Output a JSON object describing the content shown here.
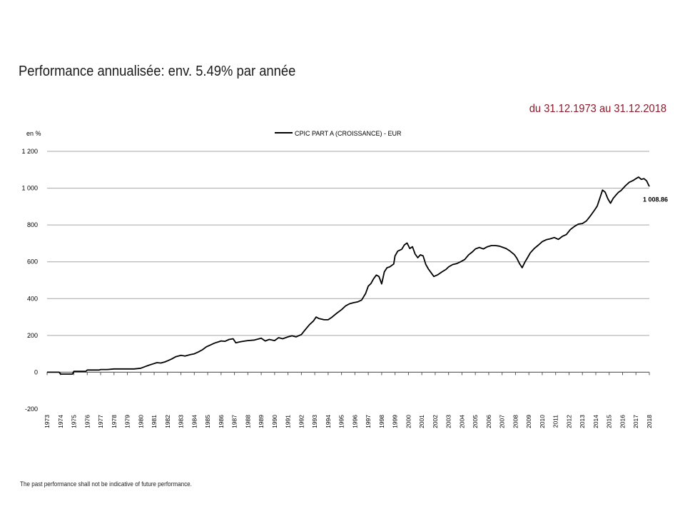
{
  "page": {
    "title": "Performance annualisée: env. 5.49% par année",
    "period": "du 31.12.1973 au 31.12.2018",
    "footnote": "The past performance shall not be indicative of future performance."
  },
  "chart_data": {
    "type": "line",
    "ylabel": "en %",
    "ylim": [
      -200,
      1200
    ],
    "yticks": [
      -200,
      0,
      200,
      400,
      600,
      800,
      1000,
      1200
    ],
    "ytick_labels": [
      "-200",
      "0",
      "200",
      "400",
      "600",
      "800",
      "1 000",
      "1 200"
    ],
    "xticks": [
      "1973",
      "1974",
      "1975",
      "1976",
      "1977",
      "1978",
      "1979",
      "1980",
      "1981",
      "1982",
      "1983",
      "1984",
      "1985",
      "1986",
      "1987",
      "1988",
      "1989",
      "1990",
      "1991",
      "1992",
      "1993",
      "1994",
      "1995",
      "1996",
      "1997",
      "1998",
      "1999",
      "2000",
      "2001",
      "2002",
      "2003",
      "2004",
      "2005",
      "2006",
      "2007",
      "2008",
      "2009",
      "2010",
      "2011",
      "2012",
      "2013",
      "2014",
      "2015",
      "2016",
      "2017",
      "2018"
    ],
    "grid": "horizontal",
    "legend_position": "top-center",
    "end_label": "1 008.86",
    "colors": {
      "line": "#000000",
      "grid": "#a6a6a6",
      "period": "#8b1a2b"
    },
    "series": [
      {
        "name": "CPIC PART A (CROISSANCE) - EUR",
        "x": [
          1973.0,
          1973.9,
          1974.0,
          1974.9,
          1975.0,
          1975.9,
          1976.0,
          1976.9,
          1977.0,
          1977.5,
          1978.0,
          1978.5,
          1979.0,
          1979.5,
          1980.0,
          1980.3,
          1980.6,
          1980.9,
          1981.2,
          1981.5,
          1981.8,
          1982.0,
          1982.3,
          1982.6,
          1983.0,
          1983.3,
          1983.7,
          1984.0,
          1984.3,
          1984.6,
          1984.9,
          1985.2,
          1985.5,
          1985.8,
          1986.0,
          1986.3,
          1986.6,
          1986.9,
          1987.1,
          1987.4,
          1987.8,
          1988.0,
          1988.5,
          1989.0,
          1989.3,
          1989.6,
          1990.0,
          1990.3,
          1990.6,
          1991.0,
          1991.3,
          1991.6,
          1992.0,
          1992.3,
          1992.6,
          1992.9,
          1993.1,
          1993.3,
          1993.7,
          1994.0,
          1994.3,
          1994.6,
          1995.0,
          1995.3,
          1995.6,
          1995.9,
          1996.2,
          1996.5,
          1996.8,
          1997.0,
          1997.2,
          1997.4,
          1997.6,
          1997.8,
          1998.0,
          1998.2,
          1998.4,
          1998.6,
          1998.9,
          1999.0,
          1999.2,
          1999.5,
          1999.7,
          1999.9,
          2000.1,
          2000.3,
          2000.5,
          2000.7,
          2000.9,
          2001.1,
          2001.3,
          2001.5,
          2001.7,
          2001.9,
          2002.2,
          2002.5,
          2002.8,
          2003.0,
          2003.3,
          2003.6,
          2003.9,
          2004.2,
          2004.5,
          2004.8,
          2005.0,
          2005.3,
          2005.6,
          2005.9,
          2006.2,
          2006.5,
          2006.8,
          2007.0,
          2007.3,
          2007.6,
          2007.9,
          2008.1,
          2008.3,
          2008.5,
          2008.7,
          2008.9,
          2009.1,
          2009.4,
          2009.7,
          2010.0,
          2010.3,
          2010.6,
          2010.9,
          2011.2,
          2011.5,
          2011.8,
          2012.1,
          2012.4,
          2012.7,
          2013.0,
          2013.3,
          2013.6,
          2013.9,
          2014.1,
          2014.3,
          2014.5,
          2014.7,
          2014.9,
          2015.1,
          2015.3,
          2015.5,
          2015.7,
          2015.9,
          2016.2,
          2016.5,
          2016.8,
          2017.0,
          2017.2,
          2017.4,
          2017.6,
          2017.8,
          2018.0
        ],
        "values": [
          0,
          0,
          -10,
          -10,
          5,
          5,
          12,
          12,
          15,
          15,
          18,
          18,
          18,
          18,
          22,
          30,
          38,
          45,
          52,
          50,
          56,
          62,
          72,
          84,
          92,
          88,
          96,
          100,
          110,
          122,
          138,
          148,
          158,
          165,
          170,
          168,
          178,
          182,
          160,
          165,
          170,
          172,
          175,
          185,
          170,
          178,
          172,
          188,
          182,
          192,
          198,
          192,
          205,
          232,
          258,
          278,
          300,
          292,
          285,
          285,
          300,
          318,
          340,
          360,
          372,
          378,
          382,
          392,
          428,
          468,
          482,
          508,
          528,
          520,
          480,
          545,
          568,
          572,
          588,
          632,
          658,
          668,
          692,
          702,
          672,
          682,
          642,
          622,
          638,
          632,
          585,
          560,
          540,
          520,
          530,
          545,
          558,
          572,
          585,
          590,
          600,
          612,
          638,
          655,
          670,
          678,
          670,
          682,
          688,
          688,
          685,
          680,
          672,
          658,
          640,
          620,
          590,
          568,
          598,
          622,
          648,
          672,
          690,
          710,
          720,
          725,
          732,
          722,
          738,
          748,
          775,
          792,
          805,
          808,
          822,
          850,
          880,
          902,
          945,
          990,
          978,
          942,
          918,
          945,
          962,
          978,
          988,
          1012,
          1032,
          1042,
          1052,
          1060,
          1048,
          1052,
          1040,
          1008.86
        ]
      }
    ]
  }
}
